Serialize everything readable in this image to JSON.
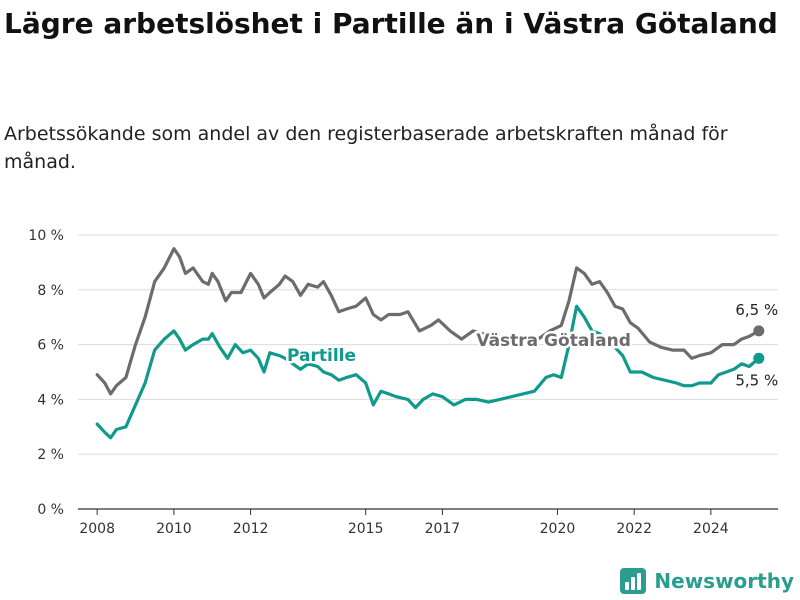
{
  "header": {
    "title": "Lägre arbetslöshet i Partille än i Västra Götaland",
    "subtitle": "Arbetssökande som andel av den registerbaserade arbetskraften månad för månad."
  },
  "brand": {
    "name": "Newsworthy",
    "icon": "bar-chart-logo-icon",
    "color": "#2a9d8f"
  },
  "chart_data": {
    "type": "line",
    "y_ticks": [
      "0 %",
      "2 %",
      "4 %",
      "6 %",
      "8 %",
      "10 %"
    ],
    "ylim": [
      0,
      10
    ],
    "x_ticks": [
      "2008",
      "2010",
      "2012",
      "2015",
      "2017",
      "2020",
      "2022",
      "2024"
    ],
    "xlim": [
      2007.5,
      2025.75
    ],
    "grid": "horizontal",
    "series": [
      {
        "name": "Västra Götaland",
        "color": "#6b6b70",
        "end_label": "6,5 %",
        "points": [
          [
            2008.0,
            4.9
          ],
          [
            2008.2,
            4.6
          ],
          [
            2008.35,
            4.2
          ],
          [
            2008.5,
            4.5
          ],
          [
            2008.75,
            4.8
          ],
          [
            2009.0,
            6.0
          ],
          [
            2009.25,
            7.0
          ],
          [
            2009.5,
            8.3
          ],
          [
            2009.75,
            8.8
          ],
          [
            2010.0,
            9.5
          ],
          [
            2010.15,
            9.2
          ],
          [
            2010.3,
            8.6
          ],
          [
            2010.5,
            8.8
          ],
          [
            2010.75,
            8.3
          ],
          [
            2010.9,
            8.2
          ],
          [
            2011.0,
            8.6
          ],
          [
            2011.15,
            8.3
          ],
          [
            2011.35,
            7.6
          ],
          [
            2011.5,
            7.9
          ],
          [
            2011.75,
            7.9
          ],
          [
            2012.0,
            8.6
          ],
          [
            2012.2,
            8.2
          ],
          [
            2012.35,
            7.7
          ],
          [
            2012.5,
            7.9
          ],
          [
            2012.75,
            8.2
          ],
          [
            2012.9,
            8.5
          ],
          [
            2013.1,
            8.3
          ],
          [
            2013.3,
            7.8
          ],
          [
            2013.5,
            8.2
          ],
          [
            2013.75,
            8.1
          ],
          [
            2013.9,
            8.3
          ],
          [
            2014.1,
            7.8
          ],
          [
            2014.3,
            7.2
          ],
          [
            2014.5,
            7.3
          ],
          [
            2014.75,
            7.4
          ],
          [
            2015.0,
            7.7
          ],
          [
            2015.2,
            7.1
          ],
          [
            2015.4,
            6.9
          ],
          [
            2015.6,
            7.1
          ],
          [
            2015.9,
            7.1
          ],
          [
            2016.1,
            7.2
          ],
          [
            2016.4,
            6.5
          ],
          [
            2016.7,
            6.7
          ],
          [
            2016.9,
            6.9
          ],
          [
            2017.2,
            6.5
          ],
          [
            2017.5,
            6.2
          ],
          [
            2017.8,
            6.5
          ],
          [
            2018.0,
            6.4
          ],
          [
            2018.3,
            6.4
          ],
          [
            2018.6,
            6.2
          ],
          [
            2018.9,
            6.0
          ],
          [
            2019.2,
            6.1
          ],
          [
            2019.5,
            6.2
          ],
          [
            2019.8,
            6.5
          ],
          [
            2020.1,
            6.7
          ],
          [
            2020.3,
            7.6
          ],
          [
            2020.5,
            8.8
          ],
          [
            2020.7,
            8.6
          ],
          [
            2020.9,
            8.2
          ],
          [
            2021.1,
            8.3
          ],
          [
            2021.3,
            7.9
          ],
          [
            2021.5,
            7.4
          ],
          [
            2021.7,
            7.3
          ],
          [
            2021.9,
            6.8
          ],
          [
            2022.1,
            6.6
          ],
          [
            2022.4,
            6.1
          ],
          [
            2022.7,
            5.9
          ],
          [
            2023.0,
            5.8
          ],
          [
            2023.3,
            5.8
          ],
          [
            2023.5,
            5.5
          ],
          [
            2023.7,
            5.6
          ],
          [
            2024.0,
            5.7
          ],
          [
            2024.3,
            6.0
          ],
          [
            2024.6,
            6.0
          ],
          [
            2024.8,
            6.2
          ],
          [
            2025.0,
            6.3
          ],
          [
            2025.25,
            6.5
          ]
        ]
      },
      {
        "name": "Partille",
        "color": "#0f9a8c",
        "end_label": "5,5 %",
        "points": [
          [
            2008.0,
            3.1
          ],
          [
            2008.2,
            2.8
          ],
          [
            2008.35,
            2.6
          ],
          [
            2008.5,
            2.9
          ],
          [
            2008.75,
            3.0
          ],
          [
            2009.0,
            3.8
          ],
          [
            2009.25,
            4.6
          ],
          [
            2009.5,
            5.8
          ],
          [
            2009.75,
            6.2
          ],
          [
            2010.0,
            6.5
          ],
          [
            2010.15,
            6.2
          ],
          [
            2010.3,
            5.8
          ],
          [
            2010.5,
            6.0
          ],
          [
            2010.75,
            6.2
          ],
          [
            2010.9,
            6.2
          ],
          [
            2011.0,
            6.4
          ],
          [
            2011.2,
            5.9
          ],
          [
            2011.4,
            5.5
          ],
          [
            2011.6,
            6.0
          ],
          [
            2011.8,
            5.7
          ],
          [
            2012.0,
            5.8
          ],
          [
            2012.2,
            5.5
          ],
          [
            2012.35,
            5.0
          ],
          [
            2012.5,
            5.7
          ],
          [
            2012.75,
            5.6
          ],
          [
            2012.9,
            5.5
          ],
          [
            2013.1,
            5.3
          ],
          [
            2013.3,
            5.1
          ],
          [
            2013.5,
            5.3
          ],
          [
            2013.75,
            5.2
          ],
          [
            2013.9,
            5.0
          ],
          [
            2014.1,
            4.9
          ],
          [
            2014.3,
            4.7
          ],
          [
            2014.5,
            4.8
          ],
          [
            2014.75,
            4.9
          ],
          [
            2015.0,
            4.6
          ],
          [
            2015.2,
            3.8
          ],
          [
            2015.4,
            4.3
          ],
          [
            2015.6,
            4.2
          ],
          [
            2015.8,
            4.1
          ],
          [
            2016.1,
            4.0
          ],
          [
            2016.3,
            3.7
          ],
          [
            2016.5,
            4.0
          ],
          [
            2016.75,
            4.2
          ],
          [
            2017.0,
            4.1
          ],
          [
            2017.3,
            3.8
          ],
          [
            2017.6,
            4.0
          ],
          [
            2017.9,
            4.0
          ],
          [
            2018.2,
            3.9
          ],
          [
            2018.5,
            4.0
          ],
          [
            2018.8,
            4.1
          ],
          [
            2019.1,
            4.2
          ],
          [
            2019.4,
            4.3
          ],
          [
            2019.7,
            4.8
          ],
          [
            2019.9,
            4.9
          ],
          [
            2020.1,
            4.8
          ],
          [
            2020.3,
            6.0
          ],
          [
            2020.5,
            7.4
          ],
          [
            2020.7,
            7.0
          ],
          [
            2020.9,
            6.5
          ],
          [
            2021.1,
            6.4
          ],
          [
            2021.3,
            6.1
          ],
          [
            2021.5,
            5.9
          ],
          [
            2021.7,
            5.6
          ],
          [
            2021.9,
            5.0
          ],
          [
            2022.2,
            5.0
          ],
          [
            2022.5,
            4.8
          ],
          [
            2022.8,
            4.7
          ],
          [
            2023.1,
            4.6
          ],
          [
            2023.3,
            4.5
          ],
          [
            2023.5,
            4.5
          ],
          [
            2023.7,
            4.6
          ],
          [
            2024.0,
            4.6
          ],
          [
            2024.2,
            4.9
          ],
          [
            2024.4,
            5.0
          ],
          [
            2024.6,
            5.1
          ],
          [
            2024.8,
            5.3
          ],
          [
            2025.0,
            5.2
          ],
          [
            2025.25,
            5.5
          ]
        ]
      }
    ]
  }
}
